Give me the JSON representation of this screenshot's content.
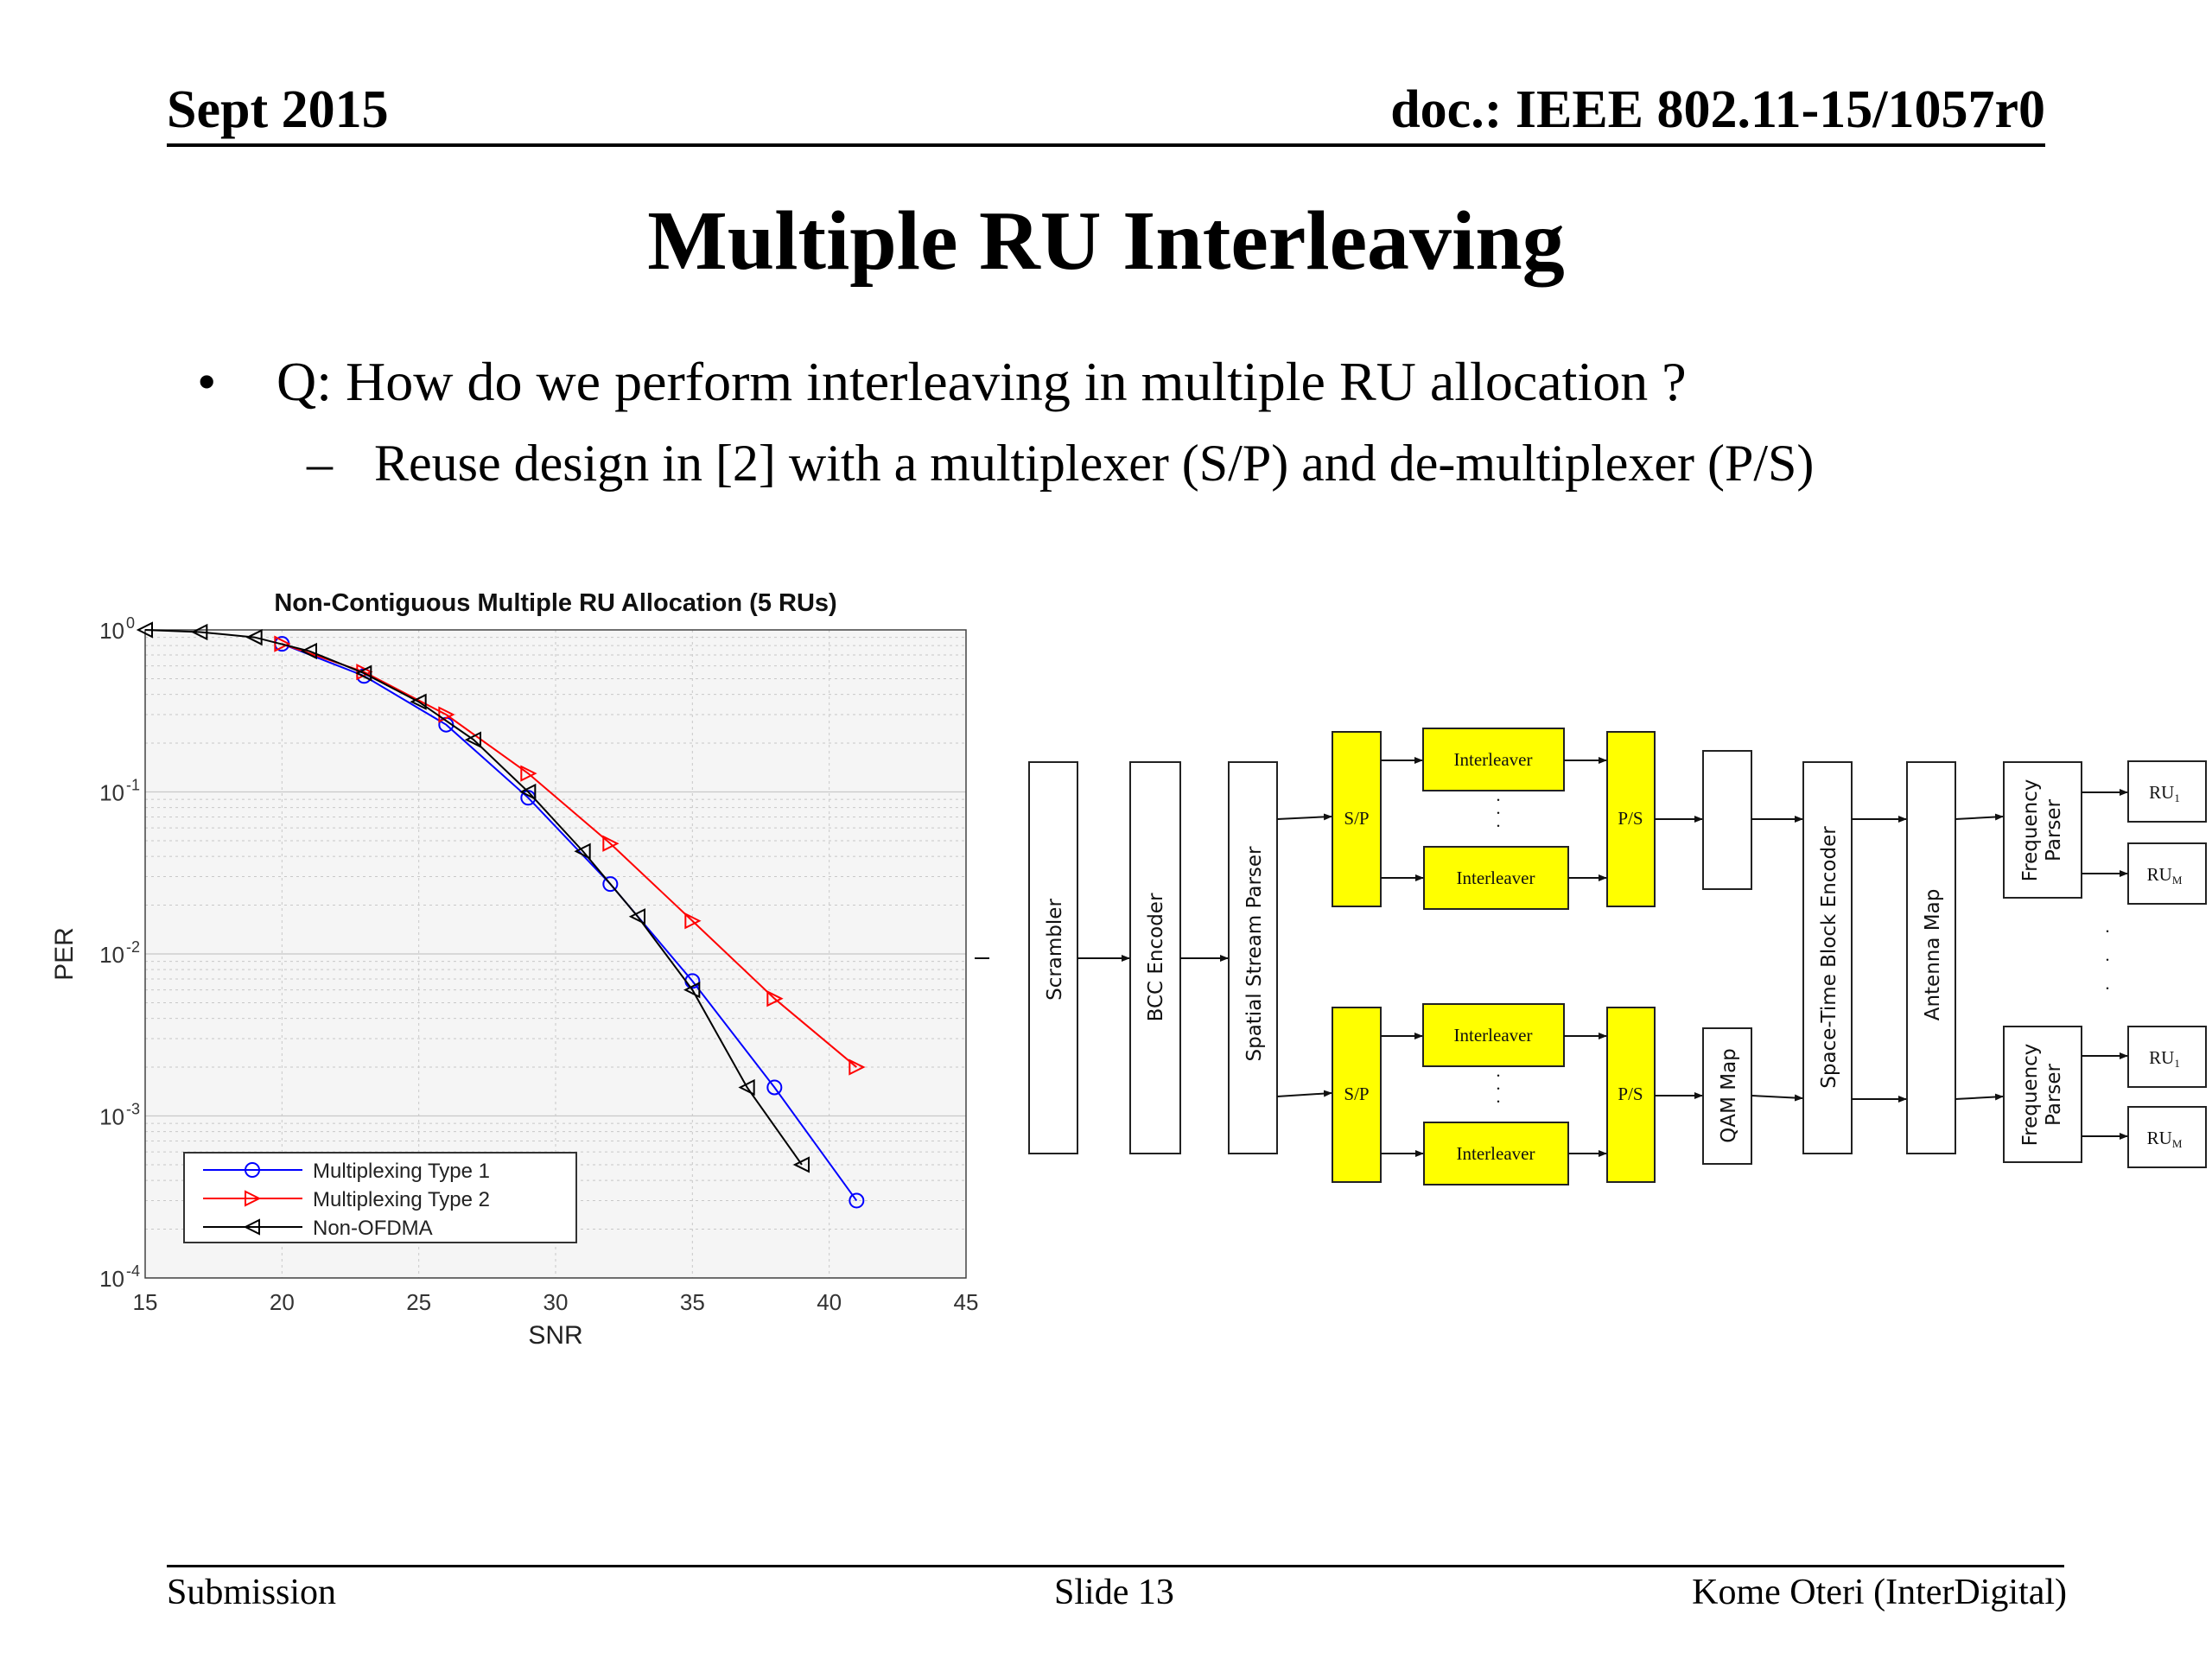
{
  "header": {
    "date": "Sept 2015",
    "doc": "doc.: IEEE 802.11-15/1057r0"
  },
  "title": "Multiple RU Interleaving",
  "bullets": [
    {
      "marker": "•",
      "text": "Q: How do we perform interleaving in multiple RU allocation ?"
    },
    {
      "marker": "–",
      "text": "Reuse design in [2] with a multiplexer (S/P) and de-multiplexer (P/S)"
    }
  ],
  "chart_data": {
    "type": "line",
    "title": "Non-Contiguous Multiple RU Allocation (5 RUs)",
    "xlabel": "SNR",
    "ylabel": "PER",
    "xlim": [
      15,
      45
    ],
    "ylim": [
      0.0001,
      1
    ],
    "y_scale": "log",
    "grid": true,
    "legend_position": "bottom-left",
    "x_ticks": [
      "15",
      "20",
      "25",
      "30",
      "35",
      "40",
      "45"
    ],
    "y_ticks": [
      {
        "base": "10",
        "exp": "0"
      },
      {
        "base": "10",
        "exp": "-1"
      },
      {
        "base": "10",
        "exp": "-2"
      },
      {
        "base": "10",
        "exp": "-3"
      },
      {
        "base": "10",
        "exp": "-4"
      }
    ],
    "series": [
      {
        "name": "Multiplexing Type 1",
        "color": "#0000ff",
        "marker": "circle",
        "x": [
          20,
          23,
          26,
          29,
          32,
          35,
          38,
          41
        ],
        "y": [
          0.82,
          0.52,
          0.26,
          0.092,
          0.027,
          0.0068,
          0.0015,
          0.0003
        ]
      },
      {
        "name": "Multiplexing Type 2",
        "color": "#ff0000",
        "marker": "triangle-right",
        "x": [
          20,
          23,
          26,
          29,
          32,
          35,
          38,
          41
        ],
        "y": [
          0.82,
          0.55,
          0.3,
          0.13,
          0.048,
          0.016,
          0.0053,
          0.002
        ]
      },
      {
        "name": "Non-OFDMA",
        "color": "#000000",
        "marker": "triangle-left",
        "x": [
          15,
          17,
          19,
          21,
          23,
          25,
          27,
          29,
          31,
          33,
          35,
          37,
          39
        ],
        "y": [
          1.0,
          0.97,
          0.9,
          0.74,
          0.54,
          0.36,
          0.21,
          0.1,
          0.043,
          0.017,
          0.006,
          0.0015,
          0.0005
        ]
      }
    ]
  },
  "diagram": {
    "scrambler": "Scrambler",
    "bcc_encoder": "BCC Encoder",
    "spatial_stream_parser": "Spatial Stream Parser",
    "sp": "S/P",
    "ps": "P/S",
    "interleaver": "Interleaver",
    "qam_map": "QAM Map",
    "stbc": "Space-Time Block Encoder",
    "antenna_map": "Antenna Map",
    "frequency_parser_line1": "Frequency",
    "frequency_parser_line2": "Parser",
    "ru_prefix": "RU",
    "ru_first_sub": "1",
    "ru_last_sub": "M",
    "ellipsis": "·",
    "block_color": "#ffff00"
  },
  "footer": {
    "left": "Submission",
    "center": "Slide 13",
    "right": "Kome Oteri (InterDigital)"
  }
}
